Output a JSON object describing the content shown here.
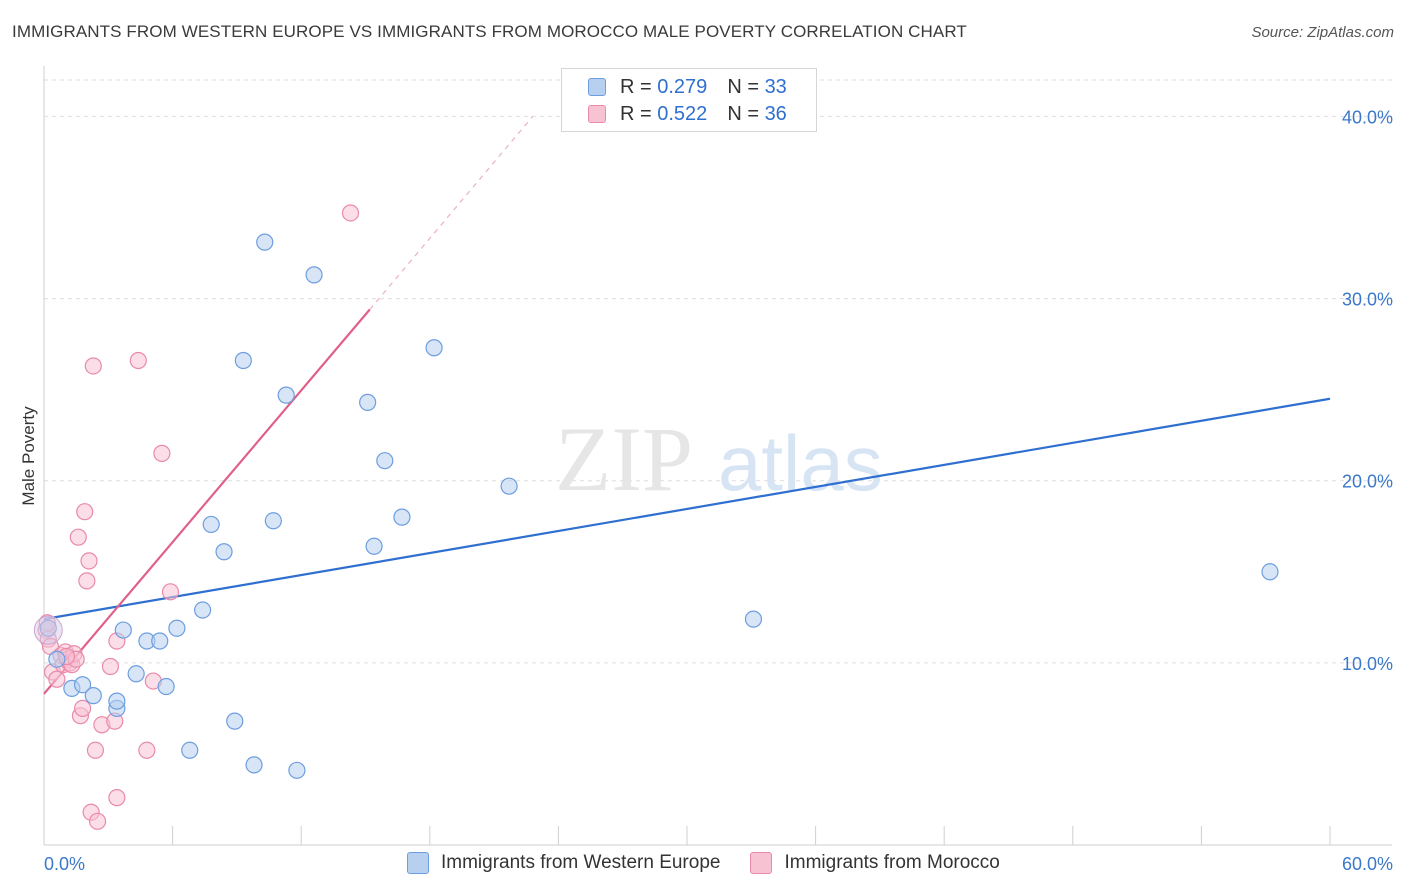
{
  "header": {
    "title": "IMMIGRANTS FROM WESTERN EUROPE VS IMMIGRANTS FROM MOROCCO MALE POVERTY CORRELATION CHART",
    "source": "Source: ZipAtlas.com"
  },
  "legend_top": {
    "rows": [
      {
        "r_label": "R =",
        "r_value": "0.279",
        "n_label": "N =",
        "n_value": "33"
      },
      {
        "r_label": "R =",
        "r_value": "0.522",
        "n_label": "N =",
        "n_value": "36"
      }
    ]
  },
  "legend_bottom": {
    "items": [
      "Immigrants from Western Europe",
      "Immigrants from Morocco"
    ]
  },
  "watermark": {
    "zip": "ZIP",
    "atlas": "atlas"
  },
  "colors": {
    "blue_fill": "#b7d0f0",
    "blue_stroke": "#6d9ee0",
    "blue_line": "#2f6fd0",
    "pink_fill": "#f7c3d3",
    "pink_stroke": "#e98aab",
    "pink_line": "#e0608a",
    "axis_text": "#3b78c9",
    "grid": "#dddddd"
  },
  "chart_data": {
    "type": "scatter",
    "title": "IMMIGRANTS FROM WESTERN EUROPE VS IMMIGRANTS FROM MOROCCO MALE POVERTY CORRELATION CHART",
    "xlabel": "",
    "ylabel": "Male Poverty",
    "xlim": [
      0,
      60
    ],
    "ylim": [
      0,
      42
    ],
    "x_tick_labels": [
      "0.0%",
      "60.0%"
    ],
    "y_ticks": [
      10,
      20,
      30,
      40
    ],
    "y_tick_labels": [
      "10.0%",
      "20.0%",
      "30.0%",
      "40.0%"
    ],
    "series": [
      {
        "name": "Immigrants from Western Europe",
        "R": 0.279,
        "N": 33,
        "trend": {
          "x": [
            0,
            60
          ],
          "y": [
            12.4,
            24.5
          ]
        },
        "points": [
          [
            0.2,
            11.9
          ],
          [
            0.6,
            10.2
          ],
          [
            1.3,
            8.6
          ],
          [
            1.8,
            8.8
          ],
          [
            2.3,
            8.2
          ],
          [
            3.4,
            7.5
          ],
          [
            3.4,
            7.9
          ],
          [
            3.7,
            11.8
          ],
          [
            4.3,
            9.4
          ],
          [
            4.8,
            11.2
          ],
          [
            5.4,
            11.2
          ],
          [
            5.7,
            8.7
          ],
          [
            6.2,
            11.9
          ],
          [
            6.8,
            5.2
          ],
          [
            7.4,
            12.9
          ],
          [
            7.8,
            17.6
          ],
          [
            8.4,
            16.1
          ],
          [
            8.9,
            6.8
          ],
          [
            9.3,
            26.6
          ],
          [
            9.8,
            4.4
          ],
          [
            10.3,
            33.1
          ],
          [
            10.7,
            17.8
          ],
          [
            11.3,
            24.7
          ],
          [
            11.8,
            4.1
          ],
          [
            12.6,
            31.3
          ],
          [
            15.1,
            24.3
          ],
          [
            15.4,
            16.4
          ],
          [
            15.9,
            21.1
          ],
          [
            16.7,
            18.0
          ],
          [
            18.2,
            27.3
          ],
          [
            21.7,
            19.7
          ],
          [
            33.1,
            12.4
          ],
          [
            57.2,
            15.0
          ]
        ]
      },
      {
        "name": "Immigrants from Morocco",
        "R": 0.522,
        "N": 36,
        "trend": {
          "x": [
            0,
            15.2
          ],
          "y": [
            8.3,
            29.4
          ]
        },
        "trend_dashed": {
          "x": [
            15.2,
            22.8
          ],
          "y": [
            29.4,
            40.0
          ]
        },
        "points": [
          [
            0.1,
            11.8
          ],
          [
            0.2,
            11.3
          ],
          [
            0.3,
            10.9
          ],
          [
            0.4,
            9.5
          ],
          [
            0.6,
            9.1
          ],
          [
            0.8,
            10.4
          ],
          [
            0.9,
            9.9
          ],
          [
            1.0,
            10.6
          ],
          [
            1.1,
            10.2
          ],
          [
            1.2,
            10.0
          ],
          [
            1.3,
            9.9
          ],
          [
            1.4,
            10.5
          ],
          [
            1.5,
            10.2
          ],
          [
            1.6,
            16.9
          ],
          [
            1.7,
            7.1
          ],
          [
            1.8,
            7.5
          ],
          [
            1.9,
            18.3
          ],
          [
            2.0,
            14.5
          ],
          [
            2.1,
            15.6
          ],
          [
            2.2,
            1.8
          ],
          [
            2.3,
            26.3
          ],
          [
            2.4,
            5.2
          ],
          [
            2.5,
            1.3
          ],
          [
            2.7,
            6.6
          ],
          [
            3.1,
            9.8
          ],
          [
            3.3,
            6.8
          ],
          [
            3.4,
            11.2
          ],
          [
            3.4,
            2.6
          ],
          [
            4.4,
            26.6
          ],
          [
            4.8,
            5.2
          ],
          [
            5.1,
            9.0
          ],
          [
            5.5,
            21.5
          ],
          [
            5.9,
            13.9
          ],
          [
            14.3,
            34.7
          ],
          [
            0.15,
            12.2
          ],
          [
            1.05,
            10.35
          ]
        ]
      }
    ]
  }
}
